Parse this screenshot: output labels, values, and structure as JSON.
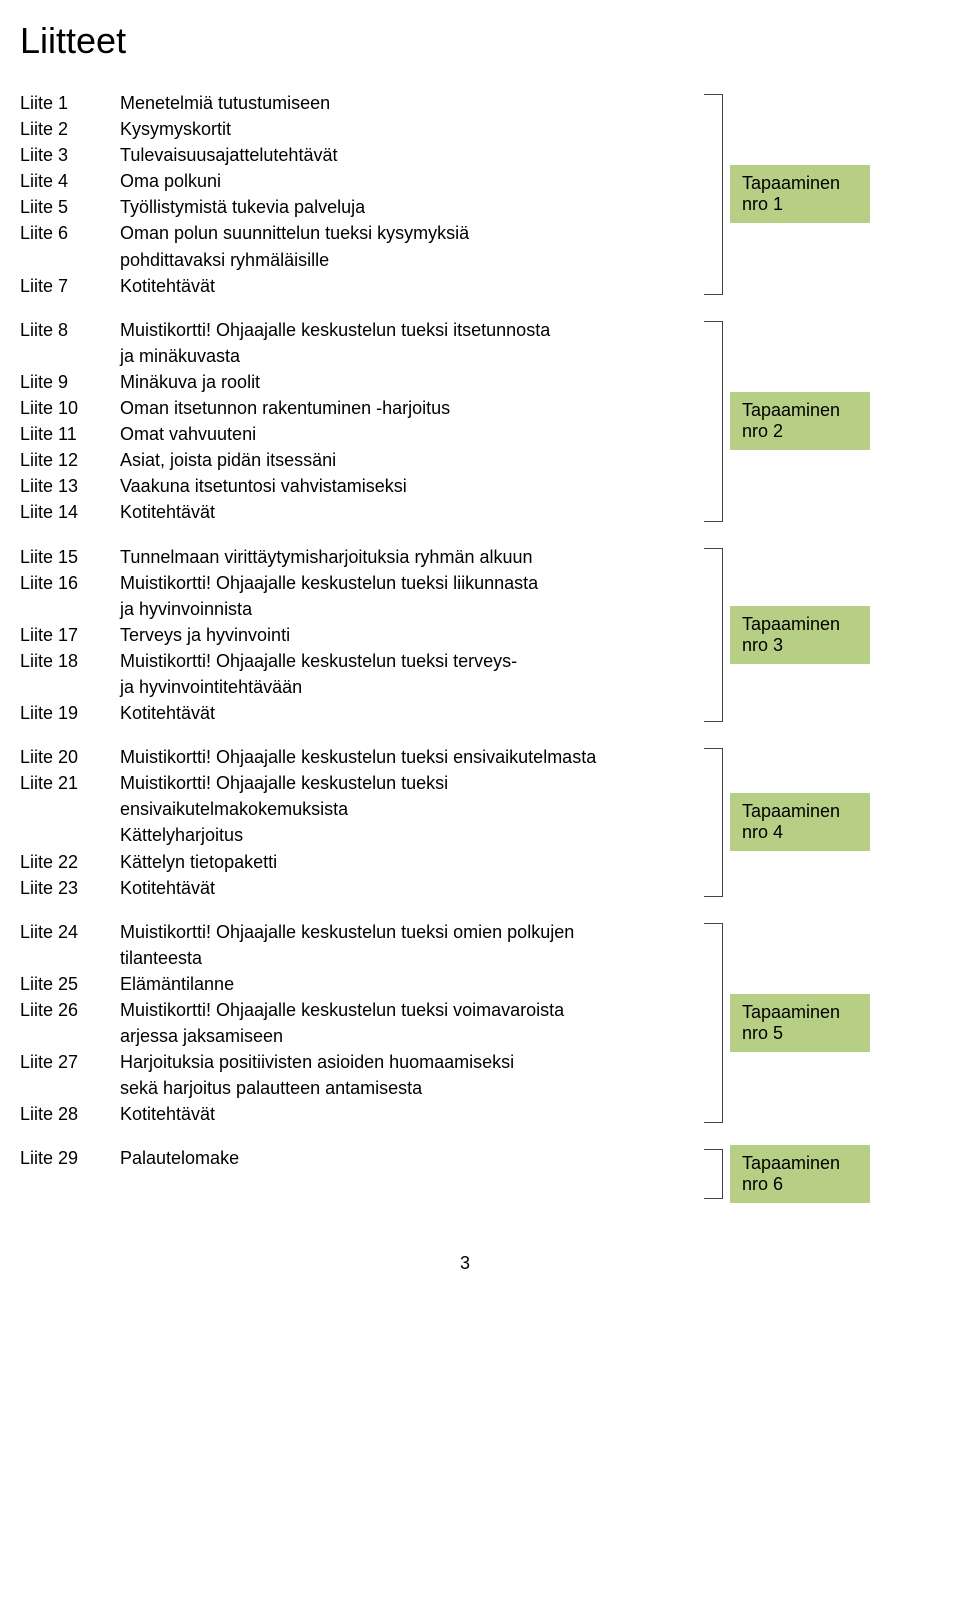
{
  "title": "Liitteet",
  "title_fontsize": 36,
  "body_fontsize": 18,
  "badge_fontsize": 18,
  "colors": {
    "text": "#000000",
    "background": "#ffffff",
    "badge_bg": "#b6cf85",
    "bracket": "#444444"
  },
  "page_number": "3",
  "groups": [
    {
      "badge_line1": "Tapaaminen",
      "badge_line2": "nro 1",
      "items": [
        {
          "num": "Liite 1",
          "lines": [
            "Menetelmiä tutustumiseen"
          ]
        },
        {
          "num": "Liite 2",
          "lines": [
            "Kysymyskortit"
          ]
        },
        {
          "num": "Liite 3",
          "lines": [
            "Tulevaisuusajattelutehtävät"
          ]
        },
        {
          "num": "Liite 4",
          "lines": [
            "Oma polkuni"
          ]
        },
        {
          "num": "Liite 5",
          "lines": [
            "Työllistymistä tukevia palveluja"
          ]
        },
        {
          "num": "Liite 6",
          "lines": [
            "Oman polun suunnittelun tueksi kysymyksiä",
            "pohdittavaksi ryhmäläisille"
          ]
        },
        {
          "num": "Liite 7",
          "lines": [
            "Kotitehtävät"
          ]
        }
      ]
    },
    {
      "badge_line1": "Tapaaminen",
      "badge_line2": "nro 2",
      "items": [
        {
          "num": "Liite 8",
          "lines": [
            "Muistikortti! Ohjaajalle keskustelun tueksi itsetunnosta",
            "ja minäkuvasta"
          ]
        },
        {
          "num": "Liite 9",
          "lines": [
            "Minäkuva ja roolit"
          ]
        },
        {
          "num": "Liite 10",
          "lines": [
            "Oman itsetunnon rakentuminen -harjoitus"
          ]
        },
        {
          "num": "Liite 11",
          "lines": [
            "Omat vahvuuteni"
          ]
        },
        {
          "num": "Liite 12",
          "lines": [
            "Asiat, joista pidän itsessäni"
          ]
        },
        {
          "num": "Liite 13",
          "lines": [
            "Vaakuna itsetuntosi vahvistamiseksi"
          ]
        },
        {
          "num": "Liite 14",
          "lines": [
            "Kotitehtävät"
          ]
        }
      ]
    },
    {
      "badge_line1": "Tapaaminen",
      "badge_line2": "nro 3",
      "items": [
        {
          "num": "Liite 15",
          "lines": [
            "Tunnelmaan virittäytymisharjoituksia ryhmän alkuun"
          ]
        },
        {
          "num": "Liite 16",
          "lines": [
            "Muistikortti! Ohjaajalle keskustelun tueksi liikunnasta",
            "ja hyvinvoinnista"
          ]
        },
        {
          "num": "Liite 17",
          "lines": [
            "Terveys ja hyvinvointi"
          ]
        },
        {
          "num": "Liite 18",
          "lines": [
            "Muistikortti! Ohjaajalle keskustelun tueksi terveys-",
            "ja hyvinvointitehtävään"
          ]
        },
        {
          "num": "Liite 19",
          "lines": [
            "Kotitehtävät"
          ]
        }
      ]
    },
    {
      "badge_line1": "Tapaaminen",
      "badge_line2": "nro 4",
      "items": [
        {
          "num": "Liite 20",
          "lines": [
            "Muistikortti! Ohjaajalle keskustelun tueksi ensivaikutelmasta"
          ]
        },
        {
          "num": "Liite 21",
          "lines": [
            "Muistikortti! Ohjaajalle keskustelun tueksi",
            "ensivaikutelmakokemuksista",
            "Kättelyharjoitus"
          ]
        },
        {
          "num": "Liite 22",
          "lines": [
            "Kättelyn tietopaketti"
          ]
        },
        {
          "num": "Liite 23",
          "lines": [
            "Kotitehtävät"
          ]
        }
      ]
    },
    {
      "badge_line1": "Tapaaminen",
      "badge_line2": "nro 5",
      "items": [
        {
          "num": "Liite 24",
          "lines": [
            "Muistikortti! Ohjaajalle keskustelun tueksi omien polkujen",
            "tilanteesta"
          ]
        },
        {
          "num": "Liite 25",
          "lines": [
            "Elämäntilanne"
          ]
        },
        {
          "num": "Liite 26",
          "lines": [
            "Muistikortti! Ohjaajalle keskustelun tueksi voimavaroista",
            "arjessa jaksamiseen"
          ]
        },
        {
          "num": "Liite 27",
          "lines": [
            "Harjoituksia positiivisten asioiden huomaamiseksi",
            "sekä harjoitus palautteen antamisesta"
          ]
        },
        {
          "num": "Liite 28",
          "lines": [
            "Kotitehtävät"
          ]
        }
      ]
    },
    {
      "badge_line1": "Tapaaminen",
      "badge_line2": "nro 6",
      "items": [
        {
          "num": "Liite 29",
          "lines": [
            "Palautelomake"
          ]
        }
      ]
    }
  ]
}
